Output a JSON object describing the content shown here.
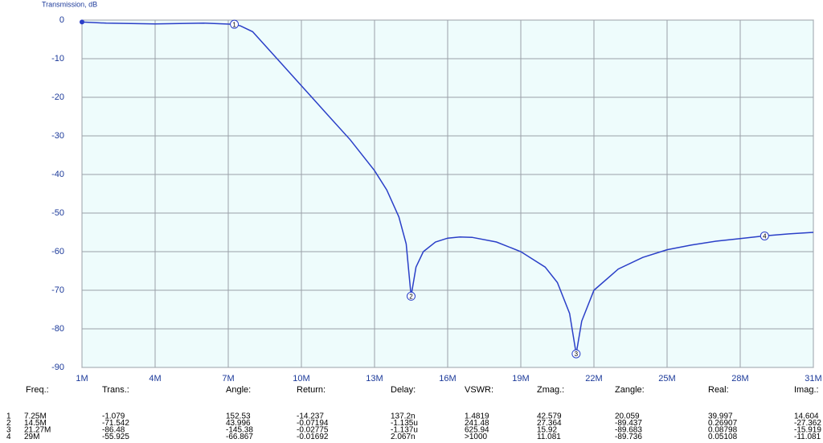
{
  "chart_data": {
    "type": "line",
    "y_label": "Transmission, dB",
    "x": [
      1,
      2,
      4,
      6,
      7.25,
      7.5,
      8,
      9,
      10,
      11,
      12,
      13,
      13.5,
      14,
      14.3,
      14.5,
      14.7,
      15,
      15.5,
      16,
      16.5,
      17,
      18,
      19,
      20,
      20.5,
      21,
      21.27,
      21.5,
      22,
      23,
      24,
      25,
      26,
      27,
      28,
      29,
      30,
      31
    ],
    "values": [
      -0.5,
      -0.8,
      -1.0,
      -0.8,
      -1.079,
      -1.5,
      -3,
      -10,
      -17,
      -24,
      -31,
      -39,
      -44,
      -51,
      -58,
      -71.542,
      -64,
      -60,
      -57.5,
      -56.5,
      -56.2,
      -56.3,
      -57.5,
      -60,
      -64,
      -68,
      -76,
      -86.48,
      -78,
      -70,
      -64.5,
      -61.5,
      -59.5,
      -58.3,
      -57.3,
      -56.6,
      -55.925,
      -55.4,
      -55
    ],
    "color": "#2a3fc8",
    "xlim": [
      1,
      31
    ],
    "xticks": [
      {
        "value": 1,
        "label": "1M"
      },
      {
        "value": 4,
        "label": "4M"
      },
      {
        "value": 7,
        "label": "7M"
      },
      {
        "value": 10,
        "label": "10M"
      },
      {
        "value": 13,
        "label": "13M"
      },
      {
        "value": 16,
        "label": "16M"
      },
      {
        "value": 19,
        "label": "19M"
      },
      {
        "value": 22,
        "label": "22M"
      },
      {
        "value": 25,
        "label": "25M"
      },
      {
        "value": 28,
        "label": "28M"
      },
      {
        "value": 31,
        "label": "31M"
      }
    ],
    "ylim": [
      -90,
      0
    ],
    "yticks": [
      0,
      -10,
      -20,
      -30,
      -40,
      -50,
      -60,
      -70,
      -80,
      -90
    ],
    "grid": true,
    "markers": [
      {
        "label": "1",
        "x": 7.25,
        "y": -1.079
      },
      {
        "label": "2",
        "x": 14.5,
        "y": -71.542
      },
      {
        "label": "3",
        "x": 21.27,
        "y": -86.48
      },
      {
        "label": "4",
        "x": 29,
        "y": -55.925
      }
    ]
  },
  "table": {
    "header": [
      "Freq.:",
      "Trans.:",
      "Angle:",
      "Return:",
      "Delay:",
      "VSWR:",
      "Zmag.:",
      "Zangle:",
      "Real:",
      "Imag.:"
    ],
    "rows": [
      [
        "1",
        "7.25M",
        "-1.079",
        "152.53",
        "-14.237",
        "137.2n",
        "1.4819",
        "42.579",
        "20.059",
        "39.997",
        "14.604"
      ],
      [
        "2",
        "14.5M",
        "-71.542",
        "43.996",
        "-0.07194",
        "-1.135u",
        "241.48",
        "27.364",
        "-89.437",
        "0.26907",
        "-27.362"
      ],
      [
        "3",
        "21.27M",
        "-86.48",
        "-145.38",
        "-0.02775",
        "-1.137u",
        "625.94",
        "15.92",
        "-89.683",
        "0.08798",
        "-15.919"
      ],
      [
        "4",
        "29M",
        "-55.925",
        "-66.867",
        "-0.01692",
        "2.067n",
        ">1000",
        "11.081",
        "-89.736",
        "0.05108",
        "-11.081"
      ]
    ]
  }
}
